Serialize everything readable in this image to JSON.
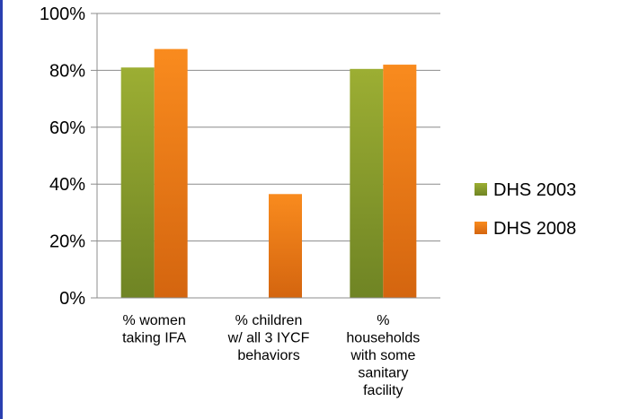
{
  "chart_data": {
    "type": "bar",
    "categories": [
      [
        "% women",
        "taking IFA"
      ],
      [
        "% children",
        "w/ all 3 IYCF",
        "behaviors"
      ],
      [
        "%",
        "households",
        "with some",
        "sanitary",
        "facility"
      ]
    ],
    "series": [
      {
        "name": "DHS 2003",
        "values": [
          81,
          null,
          80.5
        ],
        "color": "#8ea02c"
      },
      {
        "name": "DHS 2008",
        "values": [
          87.5,
          36.5,
          82
        ],
        "color": "#f2801a"
      }
    ],
    "yticks": [
      "0%",
      "20%",
      "40%",
      "60%",
      "80%",
      "100%"
    ],
    "ylim": [
      0,
      100
    ],
    "grid": true,
    "legend_position": "right"
  }
}
